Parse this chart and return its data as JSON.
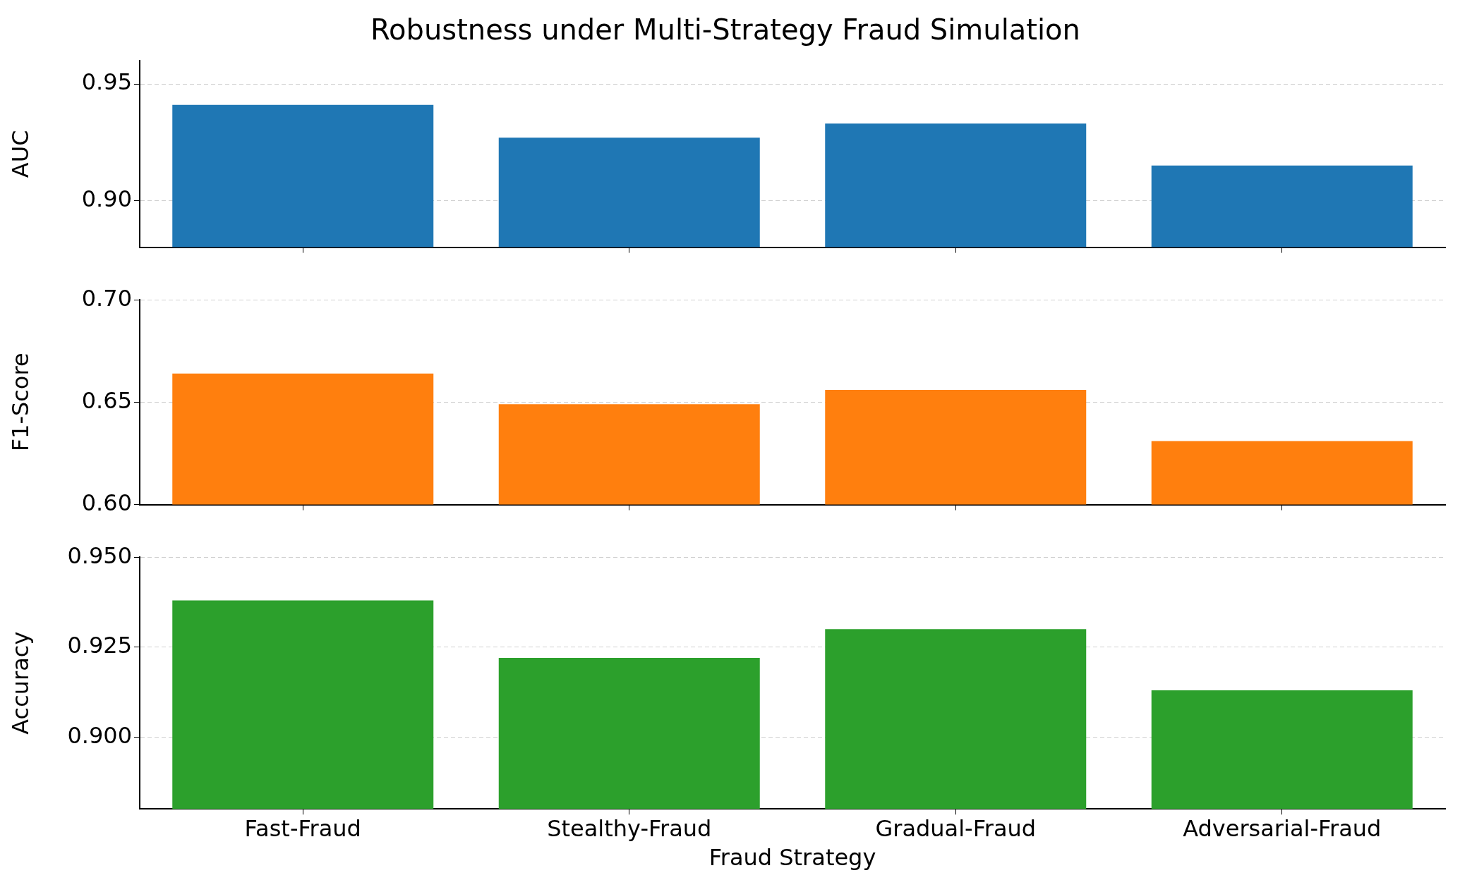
{
  "chart_data": [
    {
      "type": "bar",
      "title": "Robustness under Multi-Strategy Fraud Simulation",
      "ylabel": "AUC",
      "categories": [
        null,
        null,
        null,
        null
      ],
      "values": [
        0.941,
        0.927,
        0.933,
        0.915
      ],
      "color": "#1f77b4",
      "ylim": [
        0.88,
        0.96
      ],
      "yticks": [
        {
          "value": 0.9,
          "label": "0.90"
        },
        {
          "value": 0.95,
          "label": "0.95"
        }
      ],
      "grid": "y"
    },
    {
      "type": "bar",
      "ylabel": "F1-Score",
      "categories": [
        null,
        null,
        null,
        null
      ],
      "values": [
        0.664,
        0.649,
        0.656,
        0.631
      ],
      "color": "#ff7f0e",
      "ylim": [
        0.6,
        0.7
      ],
      "yticks": [
        {
          "value": 0.6,
          "label": "0.60"
        },
        {
          "value": 0.65,
          "label": "0.65"
        },
        {
          "value": 0.7,
          "label": "0.70"
        }
      ],
      "grid": "y"
    },
    {
      "type": "bar",
      "xlabel": "Fraud Strategy",
      "ylabel": "Accuracy",
      "categories": [
        "Fast-Fraud",
        "Stealthy-Fraud",
        "Gradual-Fraud",
        "Adversarial-Fraud"
      ],
      "values": [
        0.938,
        0.922,
        0.93,
        0.913
      ],
      "color": "#2ca02c",
      "ylim": [
        0.88,
        0.95
      ],
      "yticks": [
        {
          "value": 0.9,
          "label": "0.900"
        },
        {
          "value": 0.925,
          "label": "0.925"
        },
        {
          "value": 0.95,
          "label": "0.950"
        }
      ],
      "grid": "y"
    }
  ]
}
